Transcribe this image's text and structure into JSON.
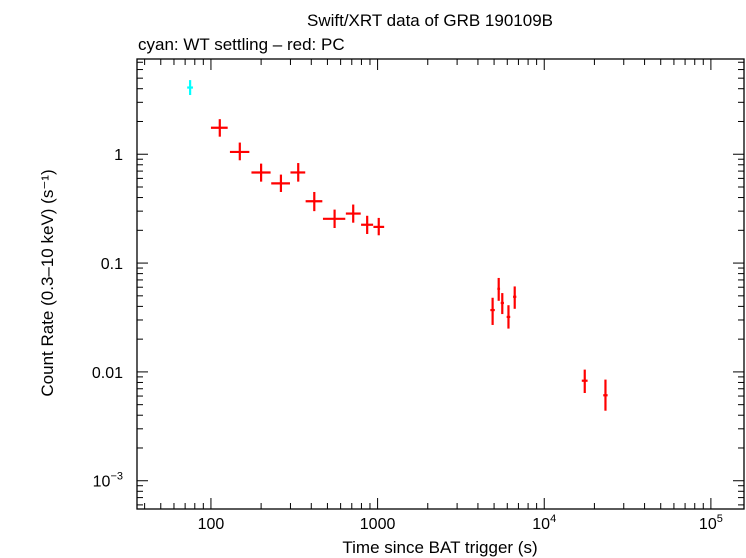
{
  "chart_data": {
    "type": "scatter",
    "title": "Swift/XRT data of GRB 190109B",
    "subtitle": "cyan: WT settling – red: PC",
    "xlabel": "Time since BAT trigger (s)",
    "ylabel": "Count Rate (0.3–10 keV) (s⁻¹)",
    "xscale": "log",
    "yscale": "log",
    "xlim": [
      36,
      158000
    ],
    "ylim": [
      0.00055,
      7.5
    ],
    "x_ticks": [
      {
        "value": 100,
        "base": "100",
        "exp": ""
      },
      {
        "value": 1000,
        "base": "1000",
        "exp": ""
      },
      {
        "value": 10000,
        "base": "10",
        "exp": "4"
      },
      {
        "value": 100000,
        "base": "10",
        "exp": "5"
      }
    ],
    "y_ticks": [
      {
        "value": 0.001,
        "base": "10",
        "exp": "−3"
      },
      {
        "value": 0.01,
        "base": "0.01",
        "exp": ""
      },
      {
        "value": 0.1,
        "base": "0.1",
        "exp": ""
      },
      {
        "value": 1,
        "base": "1",
        "exp": ""
      }
    ],
    "series": [
      {
        "name": "WT settling",
        "color": "#00ffff",
        "points": [
          {
            "x": 75,
            "xlo": 72,
            "xhi": 78,
            "y": 4.1,
            "ylo": 3.5,
            "yhi": 4.8
          }
        ]
      },
      {
        "name": "PC",
        "color": "#ff0000",
        "points": [
          {
            "x": 113,
            "xlo": 100,
            "xhi": 126,
            "y": 1.75,
            "ylo": 1.45,
            "yhi": 2.1
          },
          {
            "x": 149,
            "xlo": 130,
            "xhi": 170,
            "y": 1.05,
            "ylo": 0.88,
            "yhi": 1.28
          },
          {
            "x": 200,
            "xlo": 175,
            "xhi": 228,
            "y": 0.68,
            "ylo": 0.56,
            "yhi": 0.82
          },
          {
            "x": 263,
            "xlo": 230,
            "xhi": 298,
            "y": 0.54,
            "ylo": 0.45,
            "yhi": 0.65
          },
          {
            "x": 334,
            "xlo": 300,
            "xhi": 368,
            "y": 0.68,
            "ylo": 0.56,
            "yhi": 0.83
          },
          {
            "x": 417,
            "xlo": 370,
            "xhi": 466,
            "y": 0.37,
            "ylo": 0.3,
            "yhi": 0.45
          },
          {
            "x": 552,
            "xlo": 470,
            "xhi": 640,
            "y": 0.255,
            "ylo": 0.21,
            "yhi": 0.31
          },
          {
            "x": 714,
            "xlo": 645,
            "xhi": 792,
            "y": 0.285,
            "ylo": 0.235,
            "yhi": 0.345
          },
          {
            "x": 866,
            "xlo": 796,
            "xhi": 940,
            "y": 0.225,
            "ylo": 0.185,
            "yhi": 0.272
          },
          {
            "x": 1016,
            "xlo": 944,
            "xhi": 1095,
            "y": 0.215,
            "ylo": 0.18,
            "yhi": 0.26
          },
          {
            "x": 4900,
            "xlo": 4750,
            "xhi": 5050,
            "y": 0.037,
            "ylo": 0.027,
            "yhi": 0.048
          },
          {
            "x": 5330,
            "xlo": 5230,
            "xhi": 5430,
            "y": 0.058,
            "ylo": 0.045,
            "yhi": 0.073
          },
          {
            "x": 5600,
            "xlo": 5480,
            "xhi": 5730,
            "y": 0.043,
            "ylo": 0.034,
            "yhi": 0.053
          },
          {
            "x": 6100,
            "xlo": 5950,
            "xhi": 6250,
            "y": 0.032,
            "ylo": 0.025,
            "yhi": 0.041
          },
          {
            "x": 6650,
            "xlo": 6500,
            "xhi": 6800,
            "y": 0.049,
            "ylo": 0.038,
            "yhi": 0.061
          },
          {
            "x": 17500,
            "xlo": 16800,
            "xhi": 18200,
            "y": 0.0083,
            "ylo": 0.0064,
            "yhi": 0.0105
          },
          {
            "x": 23300,
            "xlo": 22600,
            "xhi": 24000,
            "y": 0.0061,
            "ylo": 0.0044,
            "yhi": 0.0085
          }
        ]
      }
    ]
  }
}
